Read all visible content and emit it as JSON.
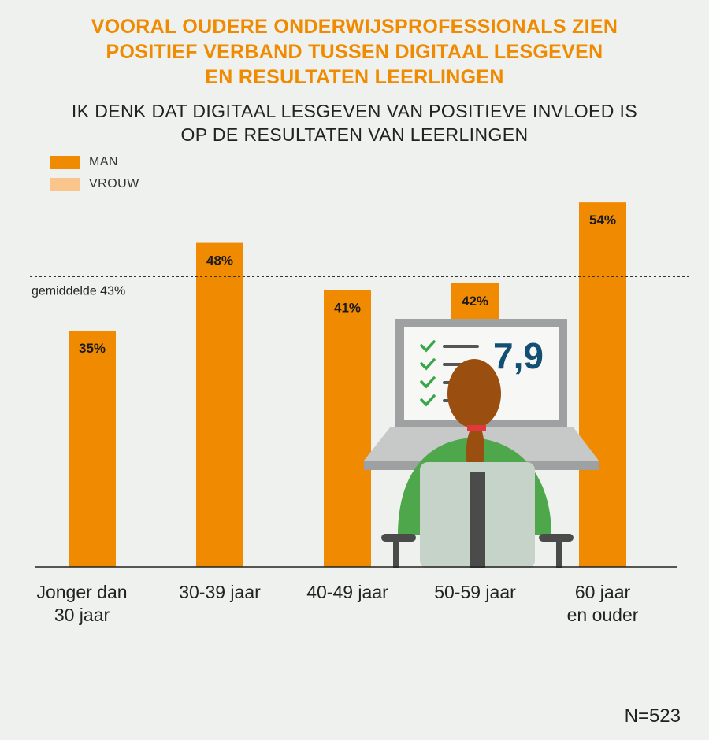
{
  "title_lines": [
    "VOORAL OUDERE ONDERWIJSPROFESSIONALS ZIEN",
    "POSITIEF VERBAND TUSSEN DIGITAAL LESGEVEN",
    "EN RESULTATEN LEERLINGEN"
  ],
  "subtitle_lines": [
    "IK DENK DAT DIGITAAL LESGEVEN VAN POSITIEVE INVLOED IS",
    "OP DE RESULTATEN VAN LEERLINGEN"
  ],
  "legend": [
    {
      "label": "MAN",
      "color": "#f08a00"
    },
    {
      "label": "VROUW",
      "color": "#f9c58a"
    }
  ],
  "footnote": "N=523",
  "illustration": {
    "screen_score": "7,9"
  },
  "chart_data": {
    "type": "bar",
    "categories": [
      [
        "Jonger dan",
        "30 jaar"
      ],
      [
        "30-39 jaar"
      ],
      [
        "40-49 jaar"
      ],
      [
        "50-59 jaar"
      ],
      [
        "60 jaar",
        "en ouder"
      ]
    ],
    "series": [
      {
        "name": "MAN",
        "values": [
          35,
          48,
          41,
          42,
          54
        ],
        "color": "#f08a00"
      }
    ],
    "value_labels": [
      "35%",
      "48%",
      "41%",
      "42%",
      "54%"
    ],
    "ylim": [
      0,
      56
    ],
    "reference_line": {
      "value": 43,
      "label": "gemiddelde 43%"
    }
  }
}
